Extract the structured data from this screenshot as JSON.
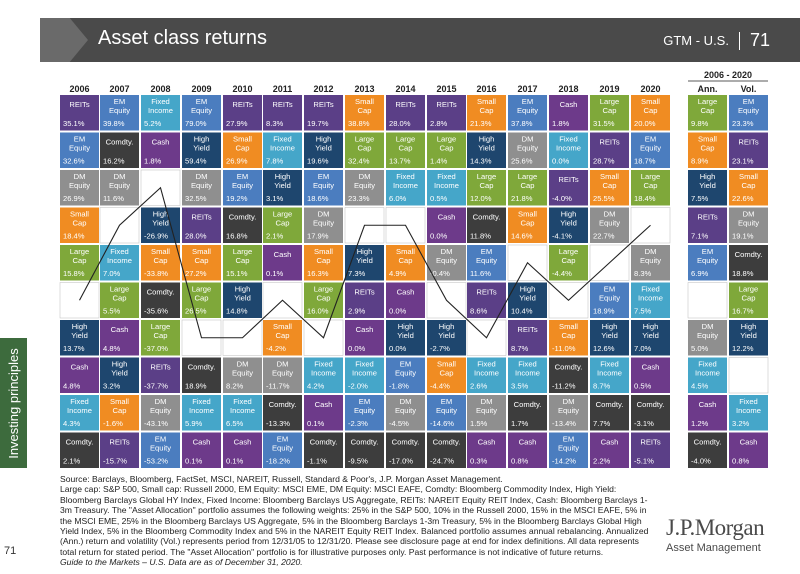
{
  "header": {
    "title": "Asset class returns",
    "right_label": "GTM - U.S.",
    "page_number": "71"
  },
  "sidebar": {
    "label": "Investing principles",
    "page_number": "71"
  },
  "colors": {
    "REITs": "#5b3f87",
    "EM Equity": "#4b7dbf",
    "Fixed Income": "#45a6c9",
    "Small Cap": "#f08c22",
    "Large Cap": "#7fa83a",
    "Cash": "#6d3a8a",
    "Comdty.": "#3d3d3d",
    "DM Equity": "#8f8f8f",
    "High Yield": "#1e466e",
    "Asset Alloc.": "#ffffff",
    "Vol": "#8f8f8f"
  },
  "chart_data": {
    "type": "table",
    "title": "Asset class returns",
    "period_header": "2006 - 2020",
    "column_headers": [
      "2006",
      "2007",
      "2008",
      "2009",
      "2010",
      "2011",
      "2012",
      "2013",
      "2014",
      "2015",
      "2016",
      "2017",
      "2018",
      "2019",
      "2020",
      "Ann.",
      "Vol."
    ],
    "columns": [
      [
        [
          "REITs",
          "35.1%"
        ],
        [
          "EM Equity",
          "32.6%"
        ],
        [
          "DM Equity",
          "26.9%"
        ],
        [
          "Small Cap",
          "18.4%"
        ],
        [
          "Large Cap",
          "15.8%"
        ],
        [
          "Asset Alloc.",
          "15.3%"
        ],
        [
          "High Yield",
          "13.7%"
        ],
        [
          "Cash",
          "4.8%"
        ],
        [
          "Fixed Income",
          "4.3%"
        ],
        [
          "Comdty.",
          "2.1%"
        ]
      ],
      [
        [
          "EM Equity",
          "39.8%"
        ],
        [
          "Comdty.",
          "16.2%"
        ],
        [
          "DM Equity",
          "11.6%"
        ],
        [
          "Asset Alloc.",
          "7.1%"
        ],
        [
          "Fixed Income",
          "7.0%"
        ],
        [
          "Large Cap",
          "5.5%"
        ],
        [
          "Cash",
          "4.8%"
        ],
        [
          "High Yield",
          "3.2%"
        ],
        [
          "Small Cap",
          "-1.6%"
        ],
        [
          "REITs",
          "-15.7%"
        ]
      ],
      [
        [
          "Fixed Income",
          "5.2%"
        ],
        [
          "Cash",
          "1.8%"
        ],
        [
          "Asset Alloc.",
          "-25.4%"
        ],
        [
          "High Yield",
          "-26.9%"
        ],
        [
          "Small Cap",
          "-33.8%"
        ],
        [
          "Comdty.",
          "-35.6%"
        ],
        [
          "Large Cap",
          "-37.0%"
        ],
        [
          "REITs",
          "-37.7%"
        ],
        [
          "DM Equity",
          "-43.1%"
        ],
        [
          "EM Equity",
          "-53.2%"
        ]
      ],
      [
        [
          "EM Equity",
          "79.0%"
        ],
        [
          "High Yield",
          "59.4%"
        ],
        [
          "DM Equity",
          "32.5%"
        ],
        [
          "REITs",
          "28.0%"
        ],
        [
          "Small Cap",
          "27.2%"
        ],
        [
          "Large Cap",
          "26.5%"
        ],
        [
          "Asset Alloc.",
          "25.0%"
        ],
        [
          "Comdty.",
          "18.9%"
        ],
        [
          "Fixed Income",
          "5.9%"
        ],
        [
          "Cash",
          "0.1%"
        ]
      ],
      [
        [
          "REITs",
          "27.9%"
        ],
        [
          "Small Cap",
          "26.9%"
        ],
        [
          "EM Equity",
          "19.2%"
        ],
        [
          "Comdty.",
          "16.8%"
        ],
        [
          "Large Cap",
          "15.1%"
        ],
        [
          "High Yield",
          "14.8%"
        ],
        [
          "Asset Alloc.",
          "13.3%"
        ],
        [
          "DM Equity",
          "8.2%"
        ],
        [
          "Fixed Income",
          "6.5%"
        ],
        [
          "Cash",
          "0.1%"
        ]
      ],
      [
        [
          "REITs",
          "8.3%"
        ],
        [
          "Fixed Income",
          "7.8%"
        ],
        [
          "High Yield",
          "3.1%"
        ],
        [
          "Large Cap",
          "2.1%"
        ],
        [
          "Cash",
          "0.1%"
        ],
        [
          "Asset Alloc.",
          "-0.7%"
        ],
        [
          "Small Cap",
          "-4.2%"
        ],
        [
          "DM Equity",
          "-11.7%"
        ],
        [
          "Comdty.",
          "-13.3%"
        ],
        [
          "EM Equity",
          "-18.2%"
        ]
      ],
      [
        [
          "REITs",
          "19.7%"
        ],
        [
          "High Yield",
          "19.6%"
        ],
        [
          "EM Equity",
          "18.6%"
        ],
        [
          "DM Equity",
          "17.9%"
        ],
        [
          "Small Cap",
          "16.3%"
        ],
        [
          "Large Cap",
          "16.0%"
        ],
        [
          "Asset Alloc.",
          "12.2%"
        ],
        [
          "Fixed Income",
          "4.2%"
        ],
        [
          "Cash",
          "0.1%"
        ],
        [
          "Comdty.",
          "-1.1%"
        ]
      ],
      [
        [
          "Small Cap",
          "38.8%"
        ],
        [
          "Large Cap",
          "32.4%"
        ],
        [
          "DM Equity",
          "23.3%"
        ],
        [
          "Asset Alloc.",
          "14.9%"
        ],
        [
          "High Yield",
          "7.3%"
        ],
        [
          "REITs",
          "2.9%"
        ],
        [
          "Cash",
          "0.0%"
        ],
        [
          "Fixed Income",
          "-2.0%"
        ],
        [
          "EM Equity",
          "-2.3%"
        ],
        [
          "Comdty.",
          "-9.5%"
        ]
      ],
      [
        [
          "REITs",
          "28.0%"
        ],
        [
          "Large Cap",
          "13.7%"
        ],
        [
          "Fixed Income",
          "6.0%"
        ],
        [
          "Asset Alloc.",
          "5.2%"
        ],
        [
          "Small Cap",
          "4.9%"
        ],
        [
          "Cash",
          "0.0%"
        ],
        [
          "High Yield",
          "0.0%"
        ],
        [
          "EM Equity",
          "-1.8%"
        ],
        [
          "DM Equity",
          "-4.5%"
        ],
        [
          "Comdty.",
          "-17.0%"
        ]
      ],
      [
        [
          "REITs",
          "2.8%"
        ],
        [
          "Large Cap",
          "1.4%"
        ],
        [
          "Fixed Income",
          "0.5%"
        ],
        [
          "Cash",
          "0.0%"
        ],
        [
          "DM Equity",
          "-0.4%"
        ],
        [
          "Asset Alloc.",
          "-2.0%"
        ],
        [
          "High Yield",
          "-2.7%"
        ],
        [
          "Small Cap",
          "-4.4%"
        ],
        [
          "EM Equity",
          "-14.6%"
        ],
        [
          "Comdty.",
          "-24.7%"
        ]
      ],
      [
        [
          "Small Cap",
          "21.3%"
        ],
        [
          "High Yield",
          "14.3%"
        ],
        [
          "Large Cap",
          "12.0%"
        ],
        [
          "Comdty.",
          "11.8%"
        ],
        [
          "EM Equity",
          "11.6%"
        ],
        [
          "REITs",
          "8.6%"
        ],
        [
          "Asset Alloc.",
          "8.3%"
        ],
        [
          "Fixed Income",
          "2.6%"
        ],
        [
          "DM Equity",
          "1.5%"
        ],
        [
          "Cash",
          "0.3%"
        ]
      ],
      [
        [
          "EM Equity",
          "37.8%"
        ],
        [
          "DM Equity",
          "25.6%"
        ],
        [
          "Large Cap",
          "21.8%"
        ],
        [
          "Small Cap",
          "14.6%"
        ],
        [
          "Asset Alloc.",
          "14.6%"
        ],
        [
          "High Yield",
          "10.4%"
        ],
        [
          "REITs",
          "8.7%"
        ],
        [
          "Fixed Income",
          "3.5%"
        ],
        [
          "Comdty.",
          "1.7%"
        ],
        [
          "Cash",
          "0.8%"
        ]
      ],
      [
        [
          "Cash",
          "1.8%"
        ],
        [
          "Fixed Income",
          "0.0%"
        ],
        [
          "REITs",
          "-4.0%"
        ],
        [
          "High Yield",
          "-4.1%"
        ],
        [
          "Large Cap",
          "-4.4%"
        ],
        [
          "Asset Alloc.",
          "-5.8%"
        ],
        [
          "Small Cap",
          "-11.0%"
        ],
        [
          "Comdty.",
          "-11.2%"
        ],
        [
          "DM Equity",
          "-13.4%"
        ],
        [
          "EM Equity",
          "-14.2%"
        ]
      ],
      [
        [
          "Large Cap",
          "31.5%"
        ],
        [
          "REITs",
          "28.7%"
        ],
        [
          "Small Cap",
          "25.5%"
        ],
        [
          "DM Equity",
          "22.7%"
        ],
        [
          "Asset Alloc.",
          "19.5%"
        ],
        [
          "EM Equity",
          "18.9%"
        ],
        [
          "High Yield",
          "12.6%"
        ],
        [
          "Fixed Income",
          "8.7%"
        ],
        [
          "Comdty.",
          "7.7%"
        ],
        [
          "Cash",
          "2.2%"
        ]
      ],
      [
        [
          "Small Cap",
          "20.0%"
        ],
        [
          "EM Equity",
          "18.7%"
        ],
        [
          "Large Cap",
          "18.4%"
        ],
        [
          "Asset Alloc.",
          "10.6%"
        ],
        [
          "DM Equity",
          "8.3%"
        ],
        [
          "Fixed Income",
          "7.5%"
        ],
        [
          "High Yield",
          "7.0%"
        ],
        [
          "Cash",
          "0.5%"
        ],
        [
          "Comdty.",
          "-3.1%"
        ],
        [
          "REITs",
          "-5.1%"
        ]
      ],
      [
        [
          "Large Cap",
          "9.8%"
        ],
        [
          "Small Cap",
          "8.9%"
        ],
        [
          "High Yield",
          "7.5%"
        ],
        [
          "REITs",
          "7.1%"
        ],
        [
          "EM Equity",
          "6.9%"
        ],
        [
          "Asset Alloc.",
          "6.7%"
        ],
        [
          "DM Equity",
          "5.0%"
        ],
        [
          "Fixed Income",
          "4.5%"
        ],
        [
          "Cash",
          "1.2%"
        ],
        [
          "Comdty.",
          "-4.0%"
        ]
      ],
      [
        [
          "EM Equity",
          "23.3%"
        ],
        [
          "REITs",
          "23.1%"
        ],
        [
          "Small Cap",
          "22.6%"
        ],
        [
          "DM Equity",
          "19.1%"
        ],
        [
          "Comdty.",
          "18.8%"
        ],
        [
          "Large Cap",
          "16.7%"
        ],
        [
          "High Yield",
          "12.2%"
        ],
        [
          "Asset Alloc.",
          "11.8%"
        ],
        [
          "Fixed Income",
          "3.2%"
        ],
        [
          "Cash",
          "0.8%"
        ]
      ]
    ]
  },
  "footnotes": {
    "source": "Source: Barclays, Bloomberg, FactSet, MSCI, NAREIT, Russell, Standard & Poor's, J.P. Morgan Asset Management.",
    "definitions": "Large cap: S&P 500, Small cap: Russell 2000, EM Equity: MSCI EME, DM Equity: MSCI EAFE, Comdty: Bloomberg Commodity Index, High Yield: Bloomberg Barclays Global HY Index, Fixed Income: Bloomberg Barclays US Aggregate, REITs: NAREIT Equity REIT Index, Cash: Bloomberg Barclays 1-3m Treasury. The \"Asset Allocation\" portfolio assumes the following weights: 25% in the S&P 500, 10% in the Russell 2000, 15% in the MSCI EAFE, 5% in the MSCI EME, 25% in the Bloomberg Barclays US Aggregate, 5% in the Bloomberg Barclays 1-3m Treasury, 5% in the Bloomberg Barclays Global High Yield Index, 5% in the Bloomberg Commodity Index and 5% in the NAREIT Equity REIT Index. Balanced portfolio assumes annual rebalancing. Annualized (Ann.) return and volatility (Vol.) represents period from 12/31/05 to 12/31/20. Please see disclosure page at end for index definitions. All data represents total return for stated period. The \"Asset Allocation\" portfolio is for illustrative purposes only. Past performance is not indicative of future returns.",
    "guide": "Guide to the Markets – U.S. Data are as of December 31, 2020."
  },
  "logo": {
    "name": "J.P.Morgan",
    "sub": "Asset Management"
  }
}
